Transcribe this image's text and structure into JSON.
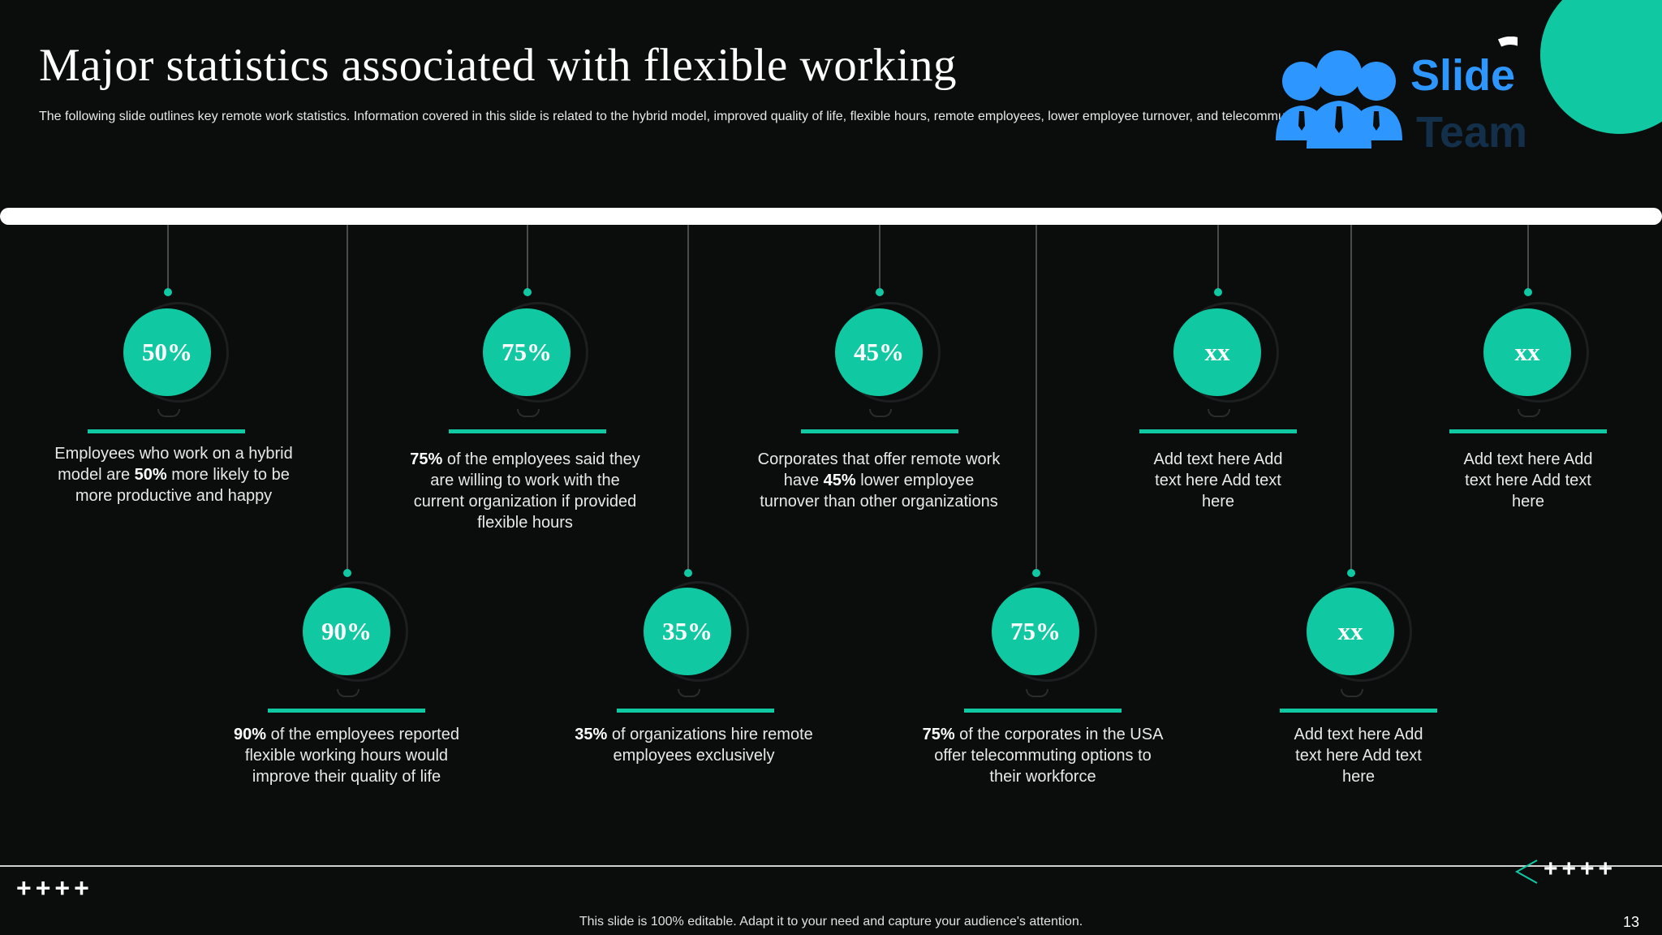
{
  "title": "Major statistics associated with flexible working",
  "subtitle": "The following slide outlines key remote work statistics. Information covered in this slide is related to the hybrid model, improved quality of life, flexible hours, remote employees, lower employee turnover, and telecommuting options.",
  "logo": {
    "line1": "Slide",
    "line2": "Team",
    "icon": "team-people-icon"
  },
  "colors": {
    "accent": "#10c9a2",
    "background": "#0b0c0c",
    "logo_blue": "#2e96ff"
  },
  "stats": [
    {
      "value": "50%",
      "pre": "Employees who work on a hybrid model are ",
      "bold": "50%",
      "post": " more likely to be more productive  and happy"
    },
    {
      "value": "90%",
      "pre": "",
      "bold": "90%",
      "post": " of the employees reported flexible working hours would improve  their quality of life"
    },
    {
      "value": "75%",
      "pre": "",
      "bold": "75%",
      "post": " of the employees said they are willing to work with the current organization if provided  flexible hours"
    },
    {
      "value": "35%",
      "pre": "",
      "bold": "35%",
      "post": " of organizations hire remote  employees exclusively"
    },
    {
      "value": "45%",
      "pre": "Corporates  that offer remote work have ",
      "bold": "45%",
      "post": " lower employee turnover  than other organizations"
    },
    {
      "value": "75%",
      "pre": "",
      "bold": "75%",
      "post": " of the corporates in the USA offer telecommuting options to their workforce"
    },
    {
      "value": "xx",
      "pre": "Add text here Add text here Add text here",
      "bold": "",
      "post": ""
    },
    {
      "value": "xx",
      "pre": "Add text here Add text here Add text here",
      "bold": "",
      "post": ""
    },
    {
      "value": "xx",
      "pre": "Add text here Add text here Add text here",
      "bold": "",
      "post": ""
    }
  ],
  "footer": {
    "plus_left": "++++",
    "plus_right": "++++",
    "note": "This slide is 100% editable.  Adapt it to your need and capture your audience's attention.",
    "page_number": "13"
  }
}
